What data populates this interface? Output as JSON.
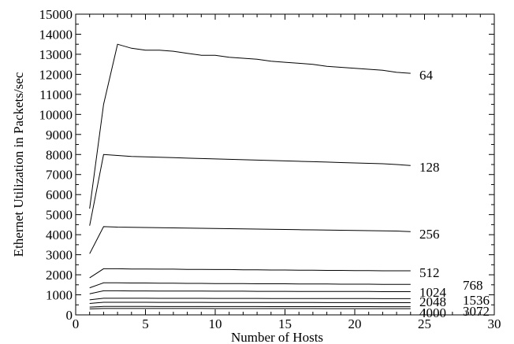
{
  "chart_data": {
    "type": "line",
    "title": "",
    "xlabel": "Number of Hosts",
    "ylabel": "Ethernet Utilization in Packets/sec",
    "xlim": [
      0,
      30
    ],
    "ylim": [
      0,
      15000
    ],
    "x_ticks": [
      "0",
      "5",
      "10",
      "15",
      "20",
      "25",
      "30"
    ],
    "y_ticks": [
      "0",
      "1000",
      "2000",
      "3000",
      "4000",
      "5000",
      "6000",
      "7000",
      "8000",
      "9000",
      "10000",
      "11000",
      "12000",
      "13000",
      "14000",
      "15000"
    ],
    "grid": false,
    "legend": "none",
    "series_labeling": "inline-right",
    "series": [
      {
        "name": "64",
        "x": [
          1,
          2,
          3,
          4,
          5,
          6,
          7,
          8,
          9,
          10,
          11,
          12,
          13,
          14,
          15,
          16,
          17,
          18,
          19,
          20,
          21,
          22,
          23,
          24
        ],
        "y": [
          5300,
          10500,
          13500,
          13300,
          13200,
          13200,
          13150,
          13050,
          12950,
          12950,
          12850,
          12800,
          12750,
          12650,
          12600,
          12550,
          12500,
          12400,
          12350,
          12300,
          12250,
          12200,
          12100,
          12050
        ]
      },
      {
        "name": "128",
        "x": [
          1,
          2,
          3,
          4,
          5,
          6,
          7,
          8,
          9,
          10,
          11,
          12,
          13,
          14,
          15,
          16,
          17,
          18,
          19,
          20,
          21,
          22,
          23,
          24
        ],
        "y": [
          4450,
          8000,
          7950,
          7900,
          7880,
          7860,
          7840,
          7820,
          7800,
          7780,
          7760,
          7740,
          7720,
          7700,
          7680,
          7660,
          7640,
          7620,
          7600,
          7580,
          7560,
          7540,
          7500,
          7450
        ]
      },
      {
        "name": "256",
        "x": [
          1,
          2,
          3,
          4,
          5,
          6,
          7,
          8,
          9,
          10,
          11,
          12,
          13,
          14,
          15,
          16,
          17,
          18,
          19,
          20,
          21,
          22,
          23,
          24
        ],
        "y": [
          3050,
          4400,
          4380,
          4370,
          4360,
          4350,
          4340,
          4330,
          4320,
          4310,
          4300,
          4290,
          4280,
          4270,
          4260,
          4250,
          4240,
          4230,
          4220,
          4210,
          4200,
          4190,
          4180,
          4150
        ]
      },
      {
        "name": "512",
        "x": [
          1,
          2,
          3,
          4,
          5,
          6,
          7,
          8,
          9,
          10,
          11,
          12,
          13,
          14,
          15,
          16,
          17,
          18,
          19,
          20,
          21,
          22,
          23,
          24
        ],
        "y": [
          1850,
          2300,
          2300,
          2290,
          2290,
          2280,
          2280,
          2270,
          2270,
          2260,
          2260,
          2250,
          2250,
          2240,
          2240,
          2230,
          2230,
          2220,
          2220,
          2210,
          2210,
          2200,
          2200,
          2200
        ]
      },
      {
        "name": "768",
        "x": [
          1,
          2,
          3,
          4,
          5,
          6,
          7,
          8,
          9,
          10,
          11,
          12,
          13,
          14,
          15,
          16,
          17,
          18,
          19,
          20,
          21,
          22,
          23,
          24
        ],
        "y": [
          1350,
          1600,
          1600,
          1590,
          1590,
          1580,
          1580,
          1570,
          1570,
          1560,
          1560,
          1560,
          1550,
          1550,
          1550,
          1540,
          1540,
          1540,
          1530,
          1530,
          1530,
          1520,
          1520,
          1520
        ]
      },
      {
        "name": "1024",
        "x": [
          1,
          2,
          3,
          4,
          5,
          6,
          7,
          8,
          9,
          10,
          11,
          12,
          13,
          14,
          15,
          16,
          17,
          18,
          19,
          20,
          21,
          22,
          23,
          24
        ],
        "y": [
          1050,
          1200,
          1200,
          1195,
          1195,
          1190,
          1190,
          1185,
          1185,
          1180,
          1180,
          1180,
          1175,
          1175,
          1175,
          1170,
          1170,
          1170,
          1165,
          1165,
          1165,
          1160,
          1160,
          1160
        ]
      },
      {
        "name": "1536",
        "x": [
          1,
          2,
          3,
          4,
          5,
          6,
          7,
          8,
          9,
          10,
          11,
          12,
          13,
          14,
          15,
          16,
          17,
          18,
          19,
          20,
          21,
          22,
          23,
          24
        ],
        "y": [
          750,
          830,
          830,
          828,
          828,
          826,
          826,
          824,
          824,
          822,
          822,
          820,
          820,
          818,
          818,
          816,
          816,
          814,
          814,
          812,
          812,
          810,
          810,
          810
        ]
      },
      {
        "name": "2048",
        "x": [
          1,
          2,
          3,
          4,
          5,
          6,
          7,
          8,
          9,
          10,
          11,
          12,
          13,
          14,
          15,
          16,
          17,
          18,
          19,
          20,
          21,
          22,
          23,
          24
        ],
        "y": [
          570,
          630,
          630,
          628,
          628,
          626,
          626,
          624,
          624,
          622,
          622,
          620,
          620,
          618,
          618,
          616,
          616,
          614,
          614,
          612,
          612,
          610,
          610,
          610
        ]
      },
      {
        "name": "3072",
        "x": [
          1,
          2,
          3,
          4,
          5,
          6,
          7,
          8,
          9,
          10,
          11,
          12,
          13,
          14,
          15,
          16,
          17,
          18,
          19,
          20,
          21,
          22,
          23,
          24
        ],
        "y": [
          390,
          420,
          420,
          419,
          419,
          418,
          418,
          417,
          417,
          416,
          416,
          415,
          415,
          414,
          414,
          413,
          413,
          412,
          412,
          411,
          411,
          410,
          410,
          410
        ]
      },
      {
        "name": "4000",
        "x": [
          1,
          2,
          3,
          4,
          5,
          6,
          7,
          8,
          9,
          10,
          11,
          12,
          13,
          14,
          15,
          16,
          17,
          18,
          19,
          20,
          21,
          22,
          23,
          24
        ],
        "y": [
          300,
          320,
          320,
          319,
          319,
          318,
          318,
          317,
          317,
          316,
          316,
          315,
          315,
          314,
          314,
          313,
          313,
          312,
          312,
          311,
          311,
          310,
          310,
          310
        ]
      }
    ]
  }
}
